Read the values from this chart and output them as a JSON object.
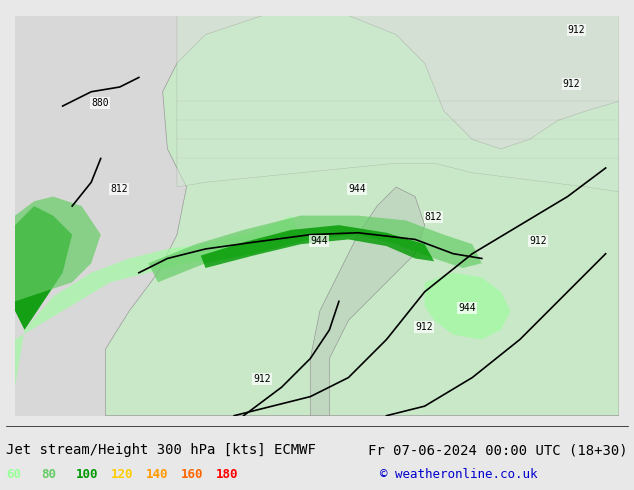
{
  "title_left": "Jet stream/Height 300 hPa [kts] ECMWF",
  "title_right": "Fr 07-06-2024 00:00 UTC (18+30)",
  "copyright": "© weatheronline.co.uk",
  "legend_values": [
    60,
    80,
    100,
    120,
    140,
    160,
    180
  ],
  "legend_colors": [
    "#99ff99",
    "#66cc66",
    "#009900",
    "#ffcc00",
    "#ff9900",
    "#ff6600",
    "#ff0000"
  ],
  "bg_color": "#e8e8e8",
  "map_bg": "#f0f0f0",
  "title_fontsize": 10,
  "copyright_fontsize": 9
}
